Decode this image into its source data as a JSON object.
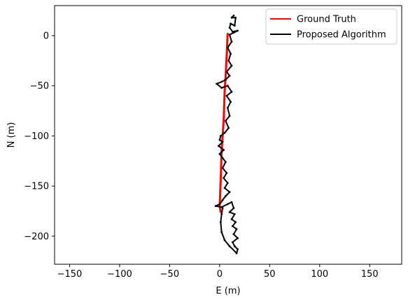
{
  "chart_data": {
    "type": "line",
    "xlabel": "E (m)",
    "ylabel": "N (m)",
    "xlim": [
      -165,
      182
    ],
    "ylim": [
      -228,
      30
    ],
    "x_ticks": [
      -150,
      -100,
      -50,
      0,
      50,
      100,
      150
    ],
    "x_tick_labels": [
      "−150",
      "−100",
      "−50",
      "0",
      "50",
      "100",
      "150"
    ],
    "y_ticks": [
      0,
      -50,
      -100,
      -150,
      -200
    ],
    "y_tick_labels": [
      "0",
      "−50",
      "−100",
      "−150",
      "−200"
    ],
    "grid": false,
    "legend_position": "top-right",
    "series": [
      {
        "name": "Ground Truth",
        "color": "#ff0000",
        "points": [
          [
            8,
            2
          ],
          [
            7,
            -20
          ],
          [
            6,
            -40
          ],
          [
            5,
            -55
          ],
          [
            4.5,
            -70
          ],
          [
            4,
            -85
          ],
          [
            3,
            -100
          ],
          [
            2,
            -115
          ],
          [
            1.5,
            -130
          ],
          [
            1,
            -145
          ],
          [
            0.5,
            -158
          ],
          [
            0,
            -170
          ],
          [
            1,
            -176
          ]
        ]
      },
      {
        "name": "Proposed Algorithm",
        "color": "#000000",
        "points": [
          [
            14,
            20
          ],
          [
            12,
            18
          ],
          [
            16,
            18
          ],
          [
            15,
            10
          ],
          [
            11,
            12
          ],
          [
            10,
            8
          ],
          [
            13,
            4
          ],
          [
            18,
            5
          ],
          [
            14,
            3
          ],
          [
            10,
            1
          ],
          [
            12,
            -6
          ],
          [
            8,
            -12
          ],
          [
            11,
            -18
          ],
          [
            9,
            -25
          ],
          [
            12,
            -30
          ],
          [
            7,
            -36
          ],
          [
            10,
            -40
          ],
          [
            6,
            -44
          ],
          [
            2,
            -46
          ],
          [
            -3,
            -48
          ],
          [
            2,
            -52
          ],
          [
            8,
            -50
          ],
          [
            12,
            -56
          ],
          [
            7,
            -60
          ],
          [
            11,
            -66
          ],
          [
            8,
            -72
          ],
          [
            10,
            -80
          ],
          [
            6,
            -85
          ],
          [
            9,
            -92
          ],
          [
            5,
            -97
          ],
          [
            1,
            -100
          ],
          [
            0,
            -104
          ],
          [
            3,
            -106
          ],
          [
            -1,
            -110
          ],
          [
            4,
            -114
          ],
          [
            0,
            -118
          ],
          [
            3,
            -122
          ],
          [
            6,
            -126
          ],
          [
            3,
            -132
          ],
          [
            7,
            -137
          ],
          [
            4,
            -142
          ],
          [
            8,
            -147
          ],
          [
            5,
            -152
          ],
          [
            10,
            -156
          ],
          [
            6,
            -160
          ],
          [
            3,
            -164
          ],
          [
            0,
            -168
          ],
          [
            -4,
            -170
          ],
          [
            2,
            -171
          ],
          [
            8,
            -168
          ],
          [
            12,
            -166
          ],
          [
            14,
            -172
          ],
          [
            10,
            -176
          ],
          [
            15,
            -178
          ],
          [
            12,
            -183
          ],
          [
            16,
            -186
          ],
          [
            13,
            -190
          ],
          [
            17,
            -193
          ],
          [
            14,
            -198
          ],
          [
            18,
            -202
          ],
          [
            13,
            -206
          ],
          [
            15,
            -210
          ],
          [
            18,
            -213
          ],
          [
            17,
            -217
          ],
          [
            10,
            -210
          ],
          [
            5,
            -204
          ],
          [
            2,
            -196
          ],
          [
            1,
            -186
          ],
          [
            2,
            -178
          ],
          [
            3,
            -172
          ]
        ]
      }
    ]
  }
}
